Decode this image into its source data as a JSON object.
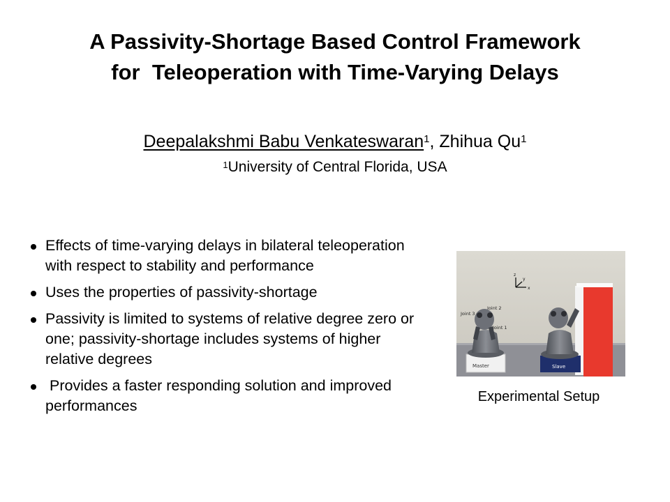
{
  "title": {
    "line1": "A Passivity-Shortage Based Control Framework",
    "line2": "for  Teleoperation with Time-Varying Delays"
  },
  "authors": {
    "author1": "Deepalakshmi Babu Venkateswaran",
    "author1_sup": "1",
    "separator": ", ",
    "author2": "Zhihua Qu",
    "author2_sup": "1"
  },
  "affiliation": {
    "sup": "1",
    "text": "University of Central Florida, USA"
  },
  "bullets": [
    "Effects of time-varying delays in bilateral teleoperation with respect to stability and performance",
    "Uses the properties of passivity-shortage",
    "Passivity is limited to systems of relative degree zero or one; passivity-shortage includes systems of higher relative degrees",
    " Provides a faster responding solution and improved performances"
  ],
  "figure": {
    "caption": "Experimental Setup",
    "labels": {
      "axis_z": "z",
      "axis_y": "y",
      "axis_x": "x",
      "joint2": "Joint 2",
      "joint3": "Joint 3",
      "joint1": "Joint 1",
      "master": "Master",
      "slave": "Slave"
    }
  }
}
